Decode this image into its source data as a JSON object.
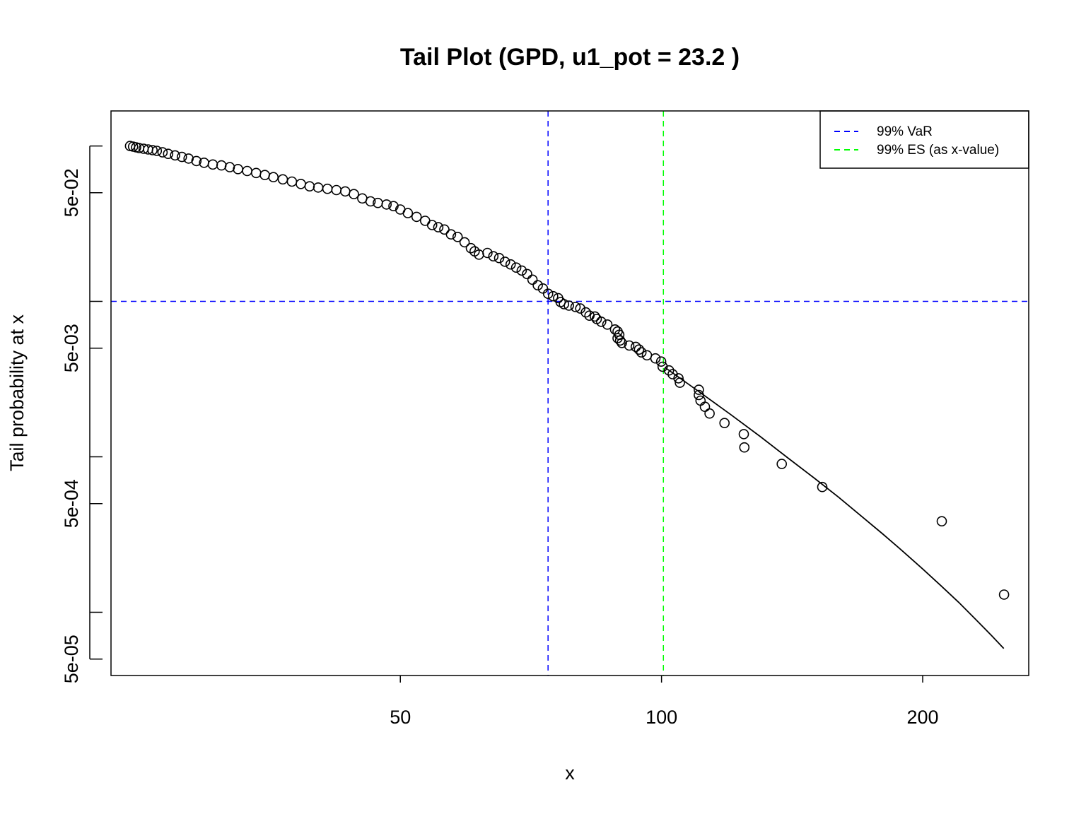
{
  "chart_data": {
    "type": "scatter",
    "title": "Tail Plot (GPD, u1_pot = 23.2 )",
    "xlabel": "x",
    "ylabel": "Tail probability at x",
    "x_scale": "log",
    "y_scale": "log",
    "xlim": [
      23.2,
      265
    ],
    "ylim": [
      3.92e-05,
      0.168
    ],
    "x_ticks": [
      {
        "value": 50,
        "label": "50"
      },
      {
        "value": 100,
        "label": "100"
      },
      {
        "value": 200,
        "label": "200"
      }
    ],
    "y_ticks": [
      {
        "value": 5e-05,
        "label": "5e-05"
      },
      {
        "value": 0.0001,
        "label": ""
      },
      {
        "value": 0.0005,
        "label": "5e-04"
      },
      {
        "value": 0.001,
        "label": ""
      },
      {
        "value": 0.005,
        "label": "5e-03"
      },
      {
        "value": 0.01,
        "label": ""
      },
      {
        "value": 0.05,
        "label": "5e-02"
      },
      {
        "value": 0.1,
        "label": ""
      }
    ],
    "grid": false,
    "legend": {
      "position": "top-right",
      "items": [
        {
          "label": "99% VaR",
          "color": "#0000ff",
          "style": "dashed"
        },
        {
          "label": "99% ES (as x-value)",
          "color": "#00ff00",
          "style": "dashed"
        }
      ]
    },
    "var_line": {
      "x": 74,
      "y": 0.01,
      "color": "#0000ff"
    },
    "es_line": {
      "x": 100.5,
      "color": "#00ff00"
    },
    "series": [
      {
        "kind": "points",
        "marker": "open-circle",
        "color": "#000000",
        "points": [
          [
            24.4,
            0.1
          ],
          [
            24.6,
            0.099
          ],
          [
            24.8,
            0.098
          ],
          [
            25.0,
            0.097
          ],
          [
            25.3,
            0.096
          ],
          [
            25.6,
            0.095
          ],
          [
            25.9,
            0.094
          ],
          [
            26.2,
            0.093
          ],
          [
            26.6,
            0.091
          ],
          [
            27.0,
            0.089
          ],
          [
            27.5,
            0.087
          ],
          [
            28.0,
            0.085
          ],
          [
            28.5,
            0.083
          ],
          [
            29.1,
            0.08
          ],
          [
            29.7,
            0.078
          ],
          [
            30.4,
            0.076
          ],
          [
            31.1,
            0.075
          ],
          [
            31.8,
            0.073
          ],
          [
            32.5,
            0.071
          ],
          [
            33.3,
            0.069
          ],
          [
            34.1,
            0.067
          ],
          [
            34.9,
            0.065
          ],
          [
            35.7,
            0.063
          ],
          [
            36.6,
            0.061
          ],
          [
            37.5,
            0.059
          ],
          [
            38.4,
            0.057
          ],
          [
            39.3,
            0.055
          ],
          [
            40.2,
            0.054
          ],
          [
            41.2,
            0.053
          ],
          [
            42.2,
            0.052
          ],
          [
            43.2,
            0.051
          ],
          [
            44.2,
            0.049
          ],
          [
            45.2,
            0.046
          ],
          [
            46.2,
            0.044
          ],
          [
            47.1,
            0.043
          ],
          [
            48.2,
            0.042
          ],
          [
            49.1,
            0.041
          ],
          [
            50.0,
            0.039
          ],
          [
            51.0,
            0.037
          ],
          [
            52.2,
            0.035
          ],
          [
            53.4,
            0.033
          ],
          [
            54.4,
            0.031
          ],
          [
            55.3,
            0.03
          ],
          [
            56.2,
            0.029
          ],
          [
            57.2,
            0.027
          ],
          [
            58.2,
            0.026
          ],
          [
            59.3,
            0.024
          ],
          [
            60.3,
            0.022
          ],
          [
            60.9,
            0.021
          ],
          [
            61.6,
            0.02
          ],
          [
            63.0,
            0.0205
          ],
          [
            64.0,
            0.0195
          ],
          [
            65.0,
            0.019
          ],
          [
            66.0,
            0.018
          ],
          [
            67.0,
            0.0173
          ],
          [
            68.0,
            0.0165
          ],
          [
            69.0,
            0.0158
          ],
          [
            70.0,
            0.015
          ],
          [
            71.0,
            0.0138
          ],
          [
            72.0,
            0.0127
          ],
          [
            73.0,
            0.0121
          ],
          [
            74.0,
            0.0112
          ],
          [
            75.0,
            0.0108
          ],
          [
            76.0,
            0.0105
          ],
          [
            76.5,
            0.0099
          ],
          [
            77.2,
            0.0096
          ],
          [
            78.2,
            0.0094
          ],
          [
            79.6,
            0.0092
          ],
          [
            80.6,
            0.009
          ],
          [
            81.8,
            0.0085
          ],
          [
            82.6,
            0.0081
          ],
          [
            83.8,
            0.008
          ],
          [
            84.2,
            0.0077
          ],
          [
            85.2,
            0.0074
          ],
          [
            86.6,
            0.0071
          ],
          [
            88.4,
            0.0066
          ],
          [
            89.0,
            0.0064
          ],
          [
            89.4,
            0.0061
          ],
          [
            89.0,
            0.0058
          ],
          [
            89.6,
            0.0056
          ],
          [
            90.0,
            0.0054
          ],
          [
            91.8,
            0.0052
          ],
          [
            93.4,
            0.0051
          ],
          [
            94.2,
            0.0049
          ],
          [
            94.8,
            0.0047
          ],
          [
            96.2,
            0.0045
          ],
          [
            98.4,
            0.0043
          ],
          [
            99.9,
            0.0041
          ],
          [
            100.3,
            0.0038
          ],
          [
            102.0,
            0.0036
          ],
          [
            103.0,
            0.0034
          ],
          [
            104.6,
            0.0032
          ],
          [
            105.0,
            0.003
          ],
          [
            110.4,
            0.0027
          ],
          [
            110.4,
            0.0025
          ],
          [
            110.9,
            0.0023
          ],
          [
            112.2,
            0.0021
          ],
          [
            113.6,
            0.0019
          ],
          [
            118.2,
            0.00165
          ],
          [
            124.4,
            0.0014
          ],
          [
            124.6,
            0.00115
          ],
          [
            137.6,
            0.0009
          ],
          [
            153.2,
            0.00064
          ],
          [
            210.4,
            0.000385
          ],
          [
            248.2,
            0.00013
          ]
        ]
      },
      {
        "kind": "line",
        "name": "",
        "color": "#000000",
        "points": [
          [
            101,
            0.00375
          ],
          [
            110,
            0.00267
          ],
          [
            120,
            0.00188
          ],
          [
            130,
            0.00135
          ],
          [
            140,
            0.00098
          ],
          [
            150,
            0.00073
          ],
          [
            160,
            0.00055
          ],
          [
            170,
            0.000415
          ],
          [
            180,
            0.000318
          ],
          [
            190,
            0.000245
          ],
          [
            200,
            0.00019
          ],
          [
            210,
            0.000148
          ],
          [
            220,
            0.000116
          ],
          [
            230,
            9.05e-05
          ],
          [
            240,
            7.1e-05
          ],
          [
            248,
            5.85e-05
          ]
        ]
      }
    ]
  }
}
